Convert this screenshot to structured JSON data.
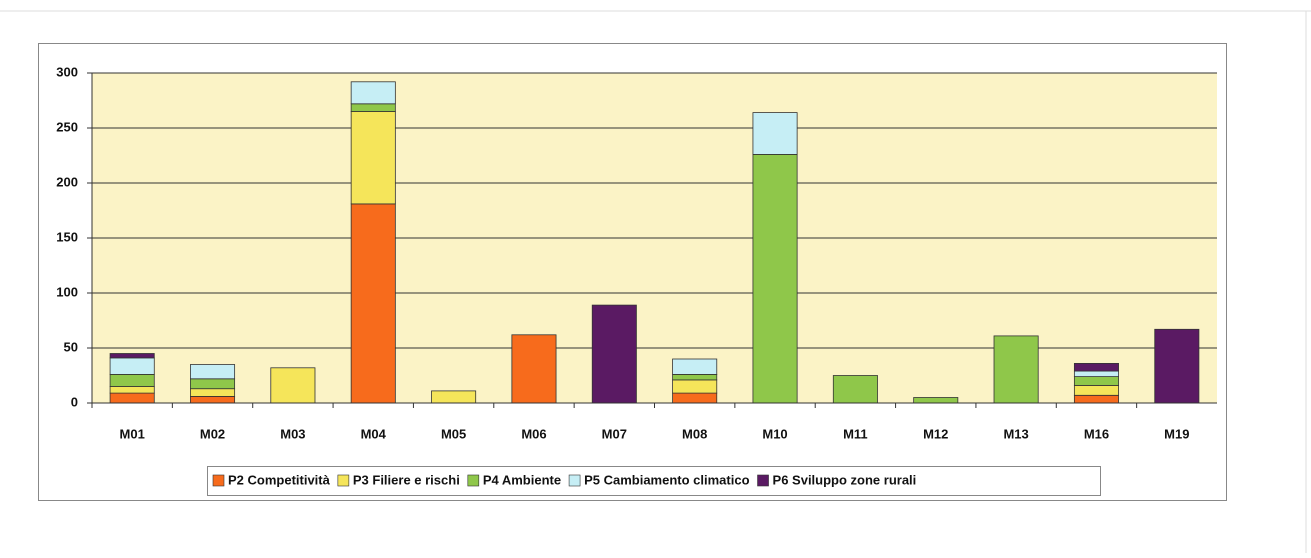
{
  "chart_data": {
    "type": "stacked_bar",
    "categories": [
      "M01",
      "M02",
      "M03",
      "M04",
      "M05",
      "M06",
      "M07",
      "M08",
      "M10",
      "M11",
      "M12",
      "M13",
      "M16",
      "M19"
    ],
    "series": [
      {
        "name": "P2 Competitività",
        "color": "#f76b1c",
        "values": [
          9,
          6,
          0,
          181,
          0,
          62,
          0,
          9,
          0,
          0,
          0,
          0,
          7,
          0
        ]
      },
      {
        "name": "P3 Filiere e rischi",
        "color": "#f5e55a",
        "values": [
          6,
          7,
          32,
          84,
          11,
          0,
          0,
          12,
          0,
          0,
          0,
          0,
          9,
          0
        ]
      },
      {
        "name": "P4 Ambiente",
        "color": "#8fc74a",
        "values": [
          11,
          9,
          0,
          7,
          0,
          0,
          0,
          5,
          226,
          25,
          5,
          61,
          8,
          0
        ]
      },
      {
        "name": "P5 Cambiamento climatico",
        "color": "#c6eef5",
        "values": [
          15,
          13,
          0,
          20,
          0,
          0,
          0,
          14,
          38,
          0,
          0,
          0,
          5,
          0
        ]
      },
      {
        "name": "P6 Sviluppo zone rurali",
        "color": "#5a1a63",
        "values": [
          4,
          0,
          0,
          0,
          0,
          0,
          89,
          0,
          0,
          0,
          0,
          0,
          7,
          67
        ]
      }
    ],
    "ylim": [
      0,
      300
    ],
    "yticks": [
      0,
      50,
      100,
      150,
      200,
      250,
      300
    ],
    "grid": true,
    "legend": "bottom"
  }
}
